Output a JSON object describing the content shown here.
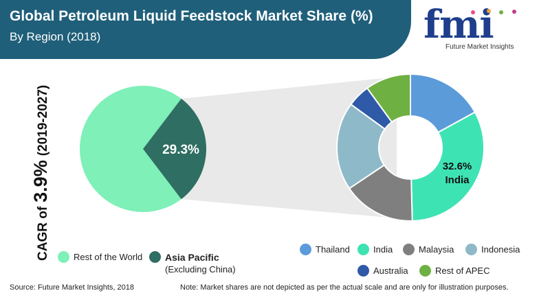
{
  "header": {
    "title": "Global Petroleum Liquid Feedstock Market Share (%)",
    "subtitle": "By Region (2018)"
  },
  "logo": {
    "text": "fmi",
    "tagline": "Future Market Insights"
  },
  "cagr": {
    "prefix": "CAGR of",
    "value": "3.9%",
    "period": "(2019-2027)"
  },
  "colors": {
    "header": "#1f5f7a",
    "rest_of_world": "#7ef0b8",
    "asia_pacific": "#2f6e62",
    "thailand": "#5b9bd9",
    "india": "#3ee3b4",
    "malaysia": "#7f7f7f",
    "indonesia": "#8eb9c9",
    "australia": "#2e5aa8",
    "rest_of_apec": "#6fb043"
  },
  "chart_data": [
    {
      "type": "pie",
      "labels": [
        "Rest of the World",
        "Asia Pacific"
      ],
      "values": [
        70.7,
        29.3
      ],
      "data_labels": [
        "",
        "29.3%"
      ],
      "legend": [
        {
          "label": "Rest of the World",
          "sublabel": ""
        },
        {
          "label": "Asia Pacific",
          "sublabel": "(Excluding China)"
        }
      ]
    },
    {
      "type": "pie",
      "donut": true,
      "labels": [
        "Thailand",
        "India",
        "Malaysia",
        "Indonesia",
        "Australia",
        "Rest of APEC"
      ],
      "values": [
        17,
        32.6,
        16,
        19.4,
        5,
        10
      ],
      "data_labels": [
        "",
        "32.6%\nIndia",
        "",
        "",
        "",
        ""
      ],
      "highlight": {
        "value": "32.6%",
        "label": "India"
      },
      "legend_placement": "bottom"
    }
  ],
  "footer": {
    "source": "Source: Future Market Insights, 2018",
    "note": "Note: Market shares are not depicted as per the actual scale and are only for illustration purposes."
  }
}
